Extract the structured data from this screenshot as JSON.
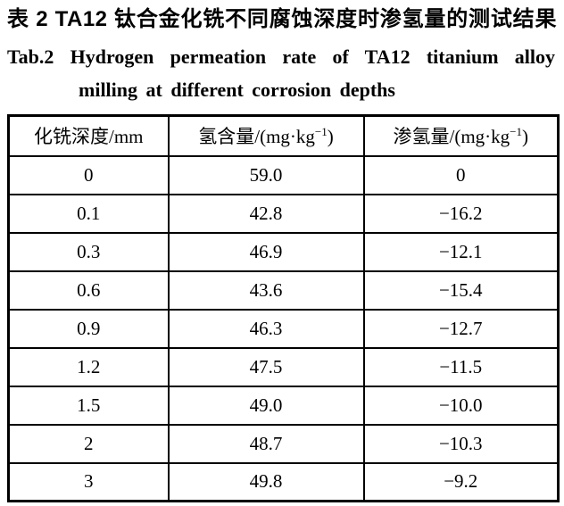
{
  "caption": {
    "zh": "表 2  TA12 钛合金化铣不同腐蚀深度时渗氢量的测试结果",
    "en_line1": "Tab.2  Hydrogen permeation rate of TA12 titanium alloy",
    "en_line2": "milling at different corrosion depths"
  },
  "table": {
    "headers": [
      {
        "prefix": "化铣深度/mm",
        "sup": "",
        "suffix": ""
      },
      {
        "prefix": "氢含量/(mg·kg",
        "sup": "−1",
        "suffix": ")"
      },
      {
        "prefix": "渗氢量/(mg·kg",
        "sup": "−1",
        "suffix": ")"
      }
    ],
    "rows": [
      [
        "0",
        "59.0",
        "0"
      ],
      [
        "0.1",
        "42.8",
        "−16.2"
      ],
      [
        "0.3",
        "46.9",
        "−12.1"
      ],
      [
        "0.6",
        "43.6",
        "−15.4"
      ],
      [
        "0.9",
        "46.3",
        "−12.7"
      ],
      [
        "1.2",
        "47.5",
        "−11.5"
      ],
      [
        "1.5",
        "49.0",
        "−10.0"
      ],
      [
        "2",
        "48.7",
        "−10.3"
      ],
      [
        "3",
        "49.8",
        "−9.2"
      ]
    ]
  },
  "chart_data": {
    "type": "table",
    "title": "Tab.2 Hydrogen permeation rate of TA12 titanium alloy milling at different corrosion depths",
    "categories": [
      "化铣深度/mm",
      "氢含量/(mg·kg−1)",
      "渗氢量/(mg·kg−1)"
    ],
    "series": [
      {
        "name": "化铣深度/mm",
        "values": [
          0,
          0.1,
          0.3,
          0.6,
          0.9,
          1.2,
          1.5,
          2,
          3
        ]
      },
      {
        "name": "氢含量/(mg·kg−1)",
        "values": [
          59.0,
          42.8,
          46.9,
          43.6,
          46.3,
          47.5,
          49.0,
          48.7,
          49.8
        ]
      },
      {
        "name": "渗氢量/(mg·kg−1)",
        "values": [
          0,
          -16.2,
          -12.1,
          -15.4,
          -12.7,
          -11.5,
          -10.0,
          -10.3,
          -9.2
        ]
      }
    ]
  }
}
